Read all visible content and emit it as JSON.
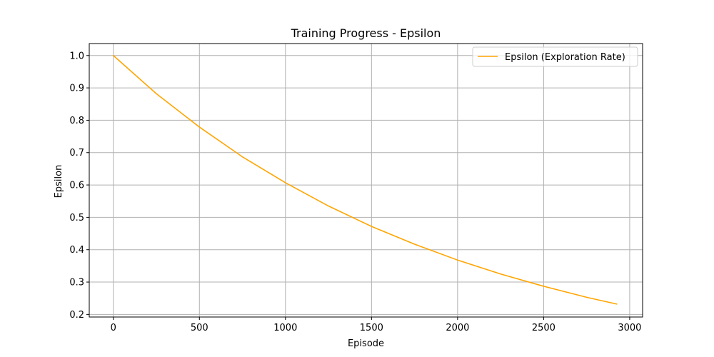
{
  "chart_data": {
    "type": "line",
    "title": "Training Progress - Epsilon",
    "xlabel": "Episode",
    "ylabel": "Epsilon",
    "xlim": [
      -140,
      3075
    ],
    "ylim": [
      0.192,
      1.037
    ],
    "xticks": [
      0,
      500,
      1000,
      1500,
      2000,
      2500,
      3000
    ],
    "yticks": [
      0.2,
      0.3,
      0.4,
      0.5,
      0.6,
      0.7,
      0.8,
      0.9,
      1.0
    ],
    "xtick_labels": [
      "0",
      "500",
      "1000",
      "1500",
      "2000",
      "2500",
      "3000"
    ],
    "ytick_labels": [
      "0.2",
      "0.3",
      "0.4",
      "0.5",
      "0.6",
      "0.7",
      "0.8",
      "0.9",
      "1.0"
    ],
    "grid": true,
    "legend": {
      "position": "top-right"
    },
    "series": [
      {
        "name": "Epsilon (Exploration Rate)",
        "color": "#ffa500",
        "x": [
          0,
          250,
          500,
          750,
          1000,
          1250,
          1500,
          1750,
          2000,
          2250,
          2500,
          2750,
          2925
        ],
        "y": [
          1.0,
          0.882,
          0.779,
          0.687,
          0.607,
          0.535,
          0.472,
          0.417,
          0.368,
          0.325,
          0.287,
          0.253,
          0.232
        ]
      }
    ]
  }
}
